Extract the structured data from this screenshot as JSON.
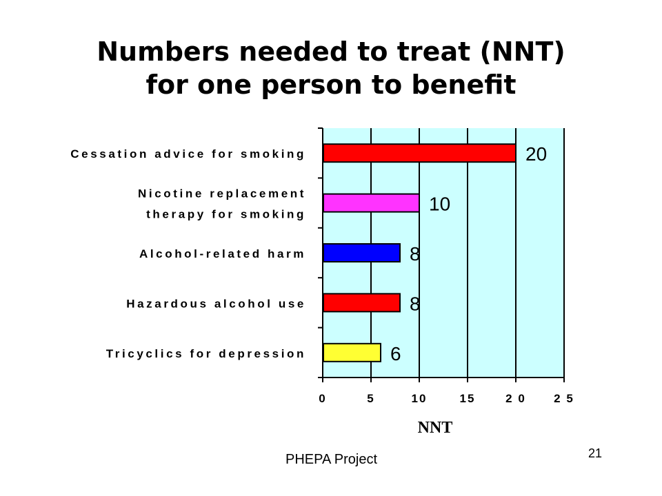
{
  "slide": {
    "title_line1": "Numbers needed to treat (NNT)",
    "title_line2": "for one person to benefit",
    "footer_left": "PHEPA Project",
    "page_number": "21"
  },
  "chart_data": {
    "type": "bar",
    "orientation": "horizontal",
    "categories": [
      [
        "Cessation advice for smoking"
      ],
      [
        "Nicotine replacement",
        "therapy for smoking"
      ],
      [
        "Alcohol-related harm"
      ],
      [
        "Hazardous alcohol use"
      ],
      [
        "Tricyclics for depression"
      ]
    ],
    "values": [
      20,
      10,
      8,
      8,
      6
    ],
    "data_labels": [
      "20",
      "10",
      "8",
      "8",
      "6"
    ],
    "bar_colors": [
      "#ff0000",
      "#ff33ff",
      "#0000ff",
      "#ff0000",
      "#ffff33"
    ],
    "xlabel": "NNT",
    "xlim": [
      0,
      25
    ],
    "xticks": [
      0,
      5,
      10,
      15,
      20,
      25
    ],
    "xtick_labels": [
      "0",
      "5",
      "10",
      "15",
      "2 0",
      "2 5"
    ],
    "grid": "vertical",
    "plot_background": "#ccffff"
  }
}
